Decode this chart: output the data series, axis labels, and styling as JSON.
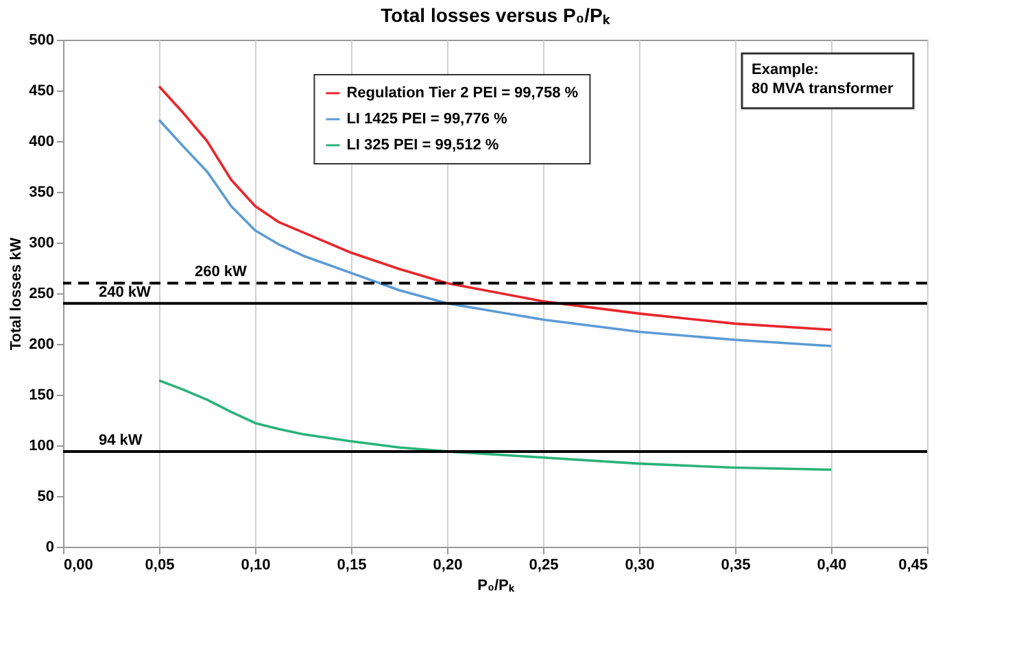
{
  "chart_data": {
    "type": "line",
    "title": "Total losses versus P₀/Pₖ",
    "xlabel": "P₀/Pₖ",
    "ylabel": "Total losses  kW",
    "x": [
      0.05,
      0.0625,
      0.075,
      0.0875,
      0.1,
      0.1125,
      0.125,
      0.15,
      0.175,
      0.2,
      0.25,
      0.3,
      0.35,
      0.4
    ],
    "series": [
      {
        "name": "Regulation Tier 2 PEI = 99,758 %",
        "color": "#e8262b",
        "values": [
          454,
          428,
          400,
          362,
          336,
          320,
          310,
          290,
          274,
          260,
          242,
          230,
          220,
          214
        ]
      },
      {
        "name": "LI 1425 PEI = 99,776 %",
        "color": "#5b9bd5",
        "values": [
          421,
          395,
          370,
          336,
          312,
          298,
          287,
          270,
          253,
          240,
          224,
          212,
          204,
          198
        ]
      },
      {
        "name": "LI 325 PEI = 99,512 %",
        "color": "#2ab27a",
        "values": [
          164,
          155,
          145,
          133,
          122,
          116,
          111,
          104,
          98,
          94,
          88,
          82,
          78,
          76
        ]
      }
    ],
    "xlim": [
      0,
      0.45
    ],
    "xticks": [
      {
        "value": 0,
        "label": "0,00"
      },
      {
        "value": 0.05,
        "label": "0,05"
      },
      {
        "value": 0.1,
        "label": "0,10"
      },
      {
        "value": 0.15,
        "label": "0,15"
      },
      {
        "value": 0.2,
        "label": "0,20"
      },
      {
        "value": 0.25,
        "label": "0,25"
      },
      {
        "value": 0.3,
        "label": "0,30"
      },
      {
        "value": 0.35,
        "label": "0,35"
      },
      {
        "value": 0.4,
        "label": "0,40"
      },
      {
        "value": 0.45,
        "label": "0,45"
      }
    ],
    "ylim": [
      0,
      500
    ],
    "yticks": [
      0,
      50,
      100,
      150,
      200,
      250,
      300,
      350,
      400,
      450,
      500
    ],
    "ref_lines": [
      {
        "axis": "y",
        "value": 260,
        "label": "260 kW",
        "color": "#000000",
        "line_style": "dashed"
      },
      {
        "axis": "y",
        "value": 240,
        "label": "240 kW",
        "color": "#000000",
        "line_style": "solid"
      },
      {
        "axis": "y",
        "value": 94,
        "label": "94 kW",
        "color": "#000000",
        "line_style": "solid"
      }
    ],
    "annotations": [
      "Example:\n80 MVA transformer"
    ],
    "grid": "x",
    "legend": "top",
    "marker": "none",
    "line_style": "solid"
  }
}
